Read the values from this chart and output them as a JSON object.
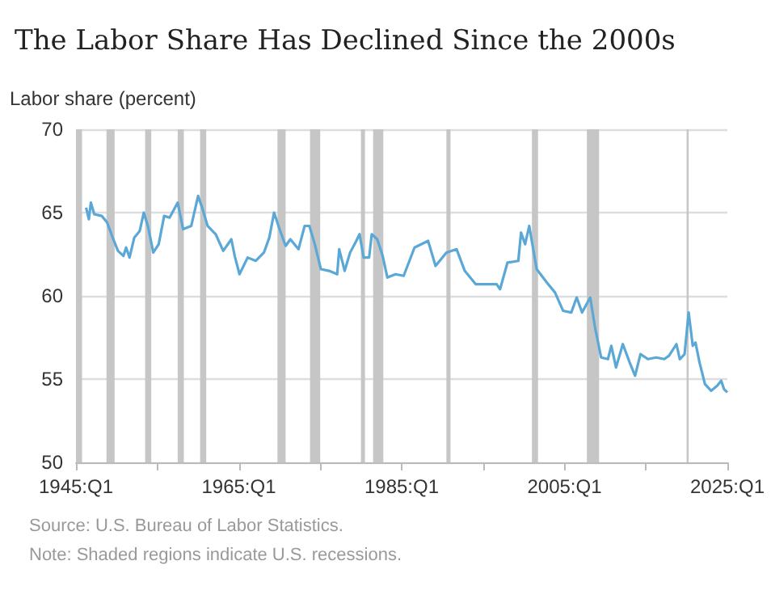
{
  "chart_data": {
    "type": "line",
    "title": "The Labor Share Has Declined Since the 2000s",
    "ylabel": "Labor share (percent)",
    "annotations": [
      "Source: U.S. Bureau of Labor Statistics.",
      "Note: Shaded regions indicate U.S. recessions."
    ],
    "xlim": [
      "1945-01",
      "2025-01"
    ],
    "ylim": [
      50,
      70
    ],
    "xticks": [
      {
        "value": "1945-01",
        "label": "1945:Q1"
      },
      {
        "value": "1955-01",
        "label": null
      },
      {
        "value": "1965-01",
        "label": "1965:Q1"
      },
      {
        "value": "1975-01",
        "label": null
      },
      {
        "value": "1985-01",
        "label": "1985:Q1"
      },
      {
        "value": "1995-01",
        "label": null
      },
      {
        "value": "2005-01",
        "label": "2005:Q1"
      },
      {
        "value": "2015-01",
        "label": null
      },
      {
        "value": "2025-01",
        "label": "2025:Q1"
      }
    ],
    "yticks": [
      50,
      55,
      60,
      65,
      70
    ],
    "grid": "y",
    "bands": [
      {
        "axis": "x",
        "from": "1945-01",
        "to": "1945-10",
        "color": "#c6c6c6"
      },
      {
        "axis": "x",
        "from": "1948-10",
        "to": "1949-10",
        "color": "#c6c6c6"
      },
      {
        "axis": "x",
        "from": "1953-07",
        "to": "1954-04",
        "color": "#c6c6c6"
      },
      {
        "axis": "x",
        "from": "1957-07",
        "to": "1958-04",
        "color": "#c6c6c6"
      },
      {
        "axis": "x",
        "from": "1960-04",
        "to": "1961-01",
        "color": "#c6c6c6"
      },
      {
        "axis": "x",
        "from": "1969-10",
        "to": "1970-10",
        "color": "#c6c6c6"
      },
      {
        "axis": "x",
        "from": "1973-10",
        "to": "1975-01",
        "color": "#c6c6c6"
      },
      {
        "axis": "x",
        "from": "1980-01",
        "to": "1980-07",
        "color": "#c6c6c6"
      },
      {
        "axis": "x",
        "from": "1981-07",
        "to": "1982-10",
        "color": "#c6c6c6"
      },
      {
        "axis": "x",
        "from": "1990-07",
        "to": "1991-01",
        "color": "#c6c6c6"
      },
      {
        "axis": "x",
        "from": "2001-01",
        "to": "2001-10",
        "color": "#c6c6c6"
      },
      {
        "axis": "x",
        "from": "2007-10",
        "to": "2009-04",
        "color": "#c6c6c6"
      },
      {
        "axis": "x",
        "from": "2020-01",
        "to": "2020-04",
        "color": "#c6c6c6"
      }
    ],
    "series": [
      {
        "color": "#5ba8d6",
        "x": [
          "1946-04",
          "1946-08",
          "1946-11",
          "1947-04",
          "1948-03",
          "1948-11",
          "1949-08",
          "1950-03",
          "1950-11",
          "1951-03",
          "1951-08",
          "1952-03",
          "1952-11",
          "1953-05",
          "1953-11",
          "1954-07",
          "1955-03",
          "1955-11",
          "1956-07",
          "1957-07",
          "1958-03",
          "1959-03",
          "1960-01",
          "1960-07",
          "1961-03",
          "1962-03",
          "1963-02",
          "1964-02",
          "1964-07",
          "1965-02",
          "1966-02",
          "1967-02",
          "1968-02",
          "1968-10",
          "1969-05",
          "1970-02",
          "1970-10",
          "1971-05",
          "1972-05",
          "1973-02",
          "1973-09",
          "1974-05",
          "1975-02",
          "1976-02",
          "1977-02",
          "1977-05",
          "1978-01",
          "1978-09",
          "1979-05",
          "1979-11",
          "1980-05",
          "1981-01",
          "1981-05",
          "1982-01",
          "1982-09",
          "1983-04",
          "1984-04",
          "1985-04",
          "1986-08",
          "1988-04",
          "1989-03",
          "1990-07",
          "1991-10",
          "1992-10",
          "1994-02",
          "1995-02",
          "1996-09",
          "1997-02",
          "1998-01",
          "1999-05",
          "1999-09",
          "2000-03",
          "2000-09",
          "2001-08",
          "2002-11",
          "2003-11",
          "2004-11",
          "2005-11",
          "2006-07",
          "2007-03",
          "2008-03",
          "2008-10",
          "2009-07",
          "2010-05",
          "2010-10",
          "2011-05",
          "2012-03",
          "2013-01",
          "2013-09",
          "2014-05",
          "2015-04",
          "2016-04",
          "2017-04",
          "2017-11",
          "2018-10",
          "2019-03",
          "2019-10",
          "2020-04",
          "2020-10",
          "2021-02",
          "2021-08",
          "2022-04",
          "2023-01",
          "2023-10",
          "2024-04",
          "2024-08",
          "2025-01"
        ],
        "values": [
          65.3,
          64.6,
          65.6,
          64.9,
          64.8,
          64.4,
          63.4,
          62.7,
          62.4,
          62.9,
          62.3,
          63.5,
          63.9,
          65.0,
          64.2,
          62.6,
          63.1,
          64.8,
          64.7,
          65.6,
          64.0,
          64.2,
          66.0,
          65.3,
          64.2,
          63.7,
          62.7,
          63.4,
          62.4,
          61.3,
          62.3,
          62.1,
          62.6,
          63.5,
          65.0,
          63.9,
          63.0,
          63.4,
          62.8,
          64.2,
          64.2,
          63.1,
          61.6,
          61.5,
          61.3,
          62.8,
          61.5,
          62.6,
          63.2,
          63.7,
          62.3,
          62.3,
          63.7,
          63.4,
          62.4,
          61.1,
          61.3,
          61.2,
          62.9,
          63.3,
          61.8,
          62.6,
          62.8,
          61.5,
          60.7,
          60.7,
          60.7,
          60.4,
          62.0,
          62.1,
          63.8,
          63.1,
          64.2,
          61.6,
          60.8,
          60.2,
          59.1,
          59.0,
          59.9,
          59.0,
          59.9,
          58.1,
          56.3,
          56.2,
          57.0,
          55.7,
          57.1,
          56.0,
          55.2,
          56.5,
          56.2,
          56.3,
          56.2,
          56.4,
          57.1,
          56.2,
          56.5,
          59.0,
          57.0,
          57.2,
          56.0,
          54.7,
          54.3,
          54.6,
          54.9,
          54.4,
          54.2
        ]
      }
    ]
  }
}
